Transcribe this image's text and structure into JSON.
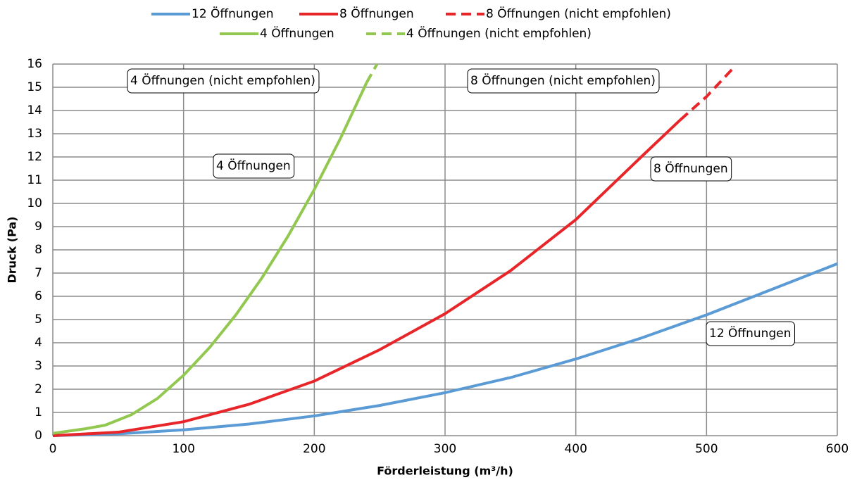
{
  "chart_data": {
    "type": "line",
    "xlabel": "Förderleistung (m³/h)",
    "ylabel": "Druck (Pa)",
    "xlim": [
      0,
      600
    ],
    "xticks": [
      0,
      100,
      200,
      300,
      400,
      500,
      600
    ],
    "ylim": [
      0,
      16
    ],
    "yticks": [
      0,
      1,
      2,
      3,
      4,
      5,
      6,
      7,
      8,
      9,
      10,
      11,
      12,
      13,
      14,
      15,
      16
    ],
    "grid": true,
    "legend": "top",
    "series": [
      {
        "name": "12 Öffnungen",
        "color": "#5b9bd5",
        "style": "solid",
        "x": [
          0,
          50,
          100,
          150,
          200,
          250,
          300,
          350,
          400,
          450,
          500,
          550,
          600
        ],
        "values": [
          0,
          0.08,
          0.25,
          0.5,
          0.85,
          1.3,
          1.85,
          2.5,
          3.3,
          4.2,
          5.2,
          6.3,
          7.4
        ]
      },
      {
        "name": "8 Öffnungen",
        "color": "#e8262a",
        "style": "solid",
        "x": [
          0,
          50,
          100,
          150,
          200,
          250,
          300,
          350,
          400,
          450,
          480
        ],
        "values": [
          0,
          0.15,
          0.6,
          1.35,
          2.35,
          3.7,
          5.25,
          7.1,
          9.3,
          12,
          13.6
        ]
      },
      {
        "name": "8 Öffnungen (nicht empfohlen)",
        "color": "#e8262a",
        "style": "dashed",
        "x": [
          480,
          500,
          520
        ],
        "values": [
          13.6,
          14.6,
          15.8
        ]
      },
      {
        "name": "4 Öffnungen",
        "color": "#92c84f",
        "style": "solid",
        "x": [
          0,
          25,
          40,
          60,
          80,
          100,
          120,
          140,
          160,
          180,
          200,
          220,
          240
        ],
        "values": [
          0.1,
          0.3,
          0.45,
          0.9,
          1.6,
          2.6,
          3.8,
          5.2,
          6.8,
          8.6,
          10.6,
          12.8,
          15.2
        ]
      },
      {
        "name": "4 Öffnungen (nicht empfohlen)",
        "color": "#92c84f",
        "style": "dashed",
        "x": [
          240,
          248
        ],
        "values": [
          15.2,
          16
        ]
      }
    ],
    "annotations": [
      "4 Öffnungen (nicht empfohlen)",
      "8 Öffnungen (nicht empfohlen)",
      "4 Öffnungen",
      "8 Öffnungen",
      "12 Öffnungen"
    ]
  }
}
